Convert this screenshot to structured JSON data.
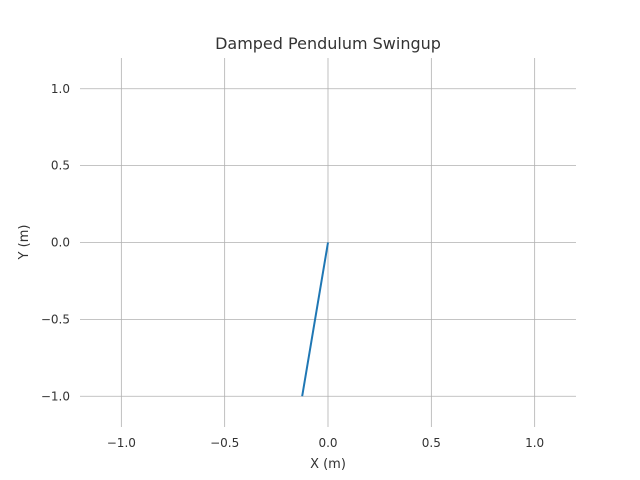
{
  "chart_data": {
    "type": "line",
    "title": "Damped Pendulum Swingup",
    "xlabel": "X (m)",
    "ylabel": "Y (m)",
    "xlim": [
      -1.2,
      1.2
    ],
    "ylim": [
      -1.2,
      1.2
    ],
    "xticks": [
      -1.0,
      -0.5,
      0.0,
      0.5,
      1.0
    ],
    "yticks": [
      -1.0,
      -0.5,
      0.0,
      0.5,
      1.0
    ],
    "xtick_labels": [
      "−1.0",
      "−0.5",
      "0.0",
      "0.5",
      "1.0"
    ],
    "ytick_labels": [
      "−1.0",
      "−0.5",
      "0.0",
      "0.5",
      "1.0"
    ],
    "grid": true,
    "series": [
      {
        "x": [
          0.0,
          -0.125
        ],
        "y": [
          0.0,
          -1.0
        ],
        "color": "#1f77b4"
      }
    ]
  }
}
